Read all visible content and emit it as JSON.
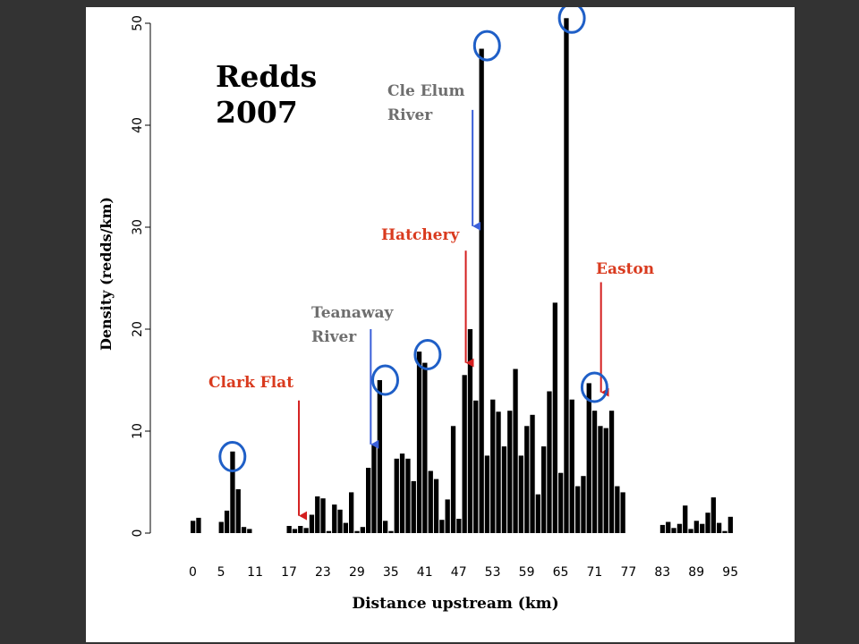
{
  "chart_data": {
    "type": "bar",
    "title": "Redds 2007",
    "title_lines": [
      "Redds",
      "2007"
    ],
    "xlabel": "Distance upstream (km)",
    "ylabel": "Density (redds/km)",
    "xlim": [
      0,
      96
    ],
    "ylim": [
      0,
      50
    ],
    "grid": false,
    "x_ticks": [
      0,
      5,
      11,
      17,
      23,
      29,
      35,
      41,
      47,
      53,
      59,
      65,
      71,
      77,
      83,
      89,
      95
    ],
    "y_ticks": [
      0,
      10,
      20,
      30,
      40,
      50
    ],
    "bar_color": "#000000",
    "x": [
      0,
      1,
      5,
      6,
      7,
      8,
      9,
      10,
      17,
      18,
      19,
      20,
      21,
      22,
      23,
      24,
      25,
      26,
      27,
      28,
      29,
      30,
      31,
      32,
      33,
      34,
      35,
      36,
      37,
      38,
      39,
      40,
      41,
      42,
      43,
      44,
      45,
      46,
      47,
      48,
      49,
      50,
      51,
      52,
      53,
      54,
      55,
      56,
      57,
      58,
      59,
      60,
      61,
      62,
      63,
      64,
      65,
      66,
      67,
      68,
      69,
      70,
      71,
      72,
      73,
      74,
      75,
      76,
      83,
      84,
      85,
      86,
      87,
      88,
      89,
      90,
      91,
      92,
      93,
      94,
      95
    ],
    "values": [
      1.2,
      1.5,
      1.1,
      2.2,
      8.0,
      4.3,
      0.6,
      0.4,
      0.7,
      0.4,
      0.7,
      0.5,
      1.8,
      3.6,
      3.4,
      0.2,
      2.8,
      2.3,
      1.0,
      4.0,
      0.2,
      0.6,
      6.4,
      8.7,
      15.0,
      1.2,
      0.2,
      7.3,
      7.8,
      7.3,
      5.1,
      17.8,
      16.7,
      6.1,
      5.3,
      1.3,
      3.3,
      10.5,
      1.4,
      15.5,
      20.0,
      13.0,
      47.5,
      7.6,
      13.1,
      11.9,
      8.5,
      12.0,
      16.1,
      7.6,
      10.5,
      11.6,
      3.8,
      8.5,
      13.9,
      22.6,
      5.9,
      50.5,
      13.1,
      4.6,
      5.6,
      14.7,
      12.0,
      10.5,
      10.3,
      12.0,
      4.6,
      4.0,
      0.8,
      1.1,
      0.5,
      0.9,
      2.7,
      0.4,
      1.2,
      0.9,
      2.0,
      3.5,
      1.0,
      0.2,
      1.6
    ],
    "annotations": [
      {
        "text": "Clark Flat",
        "lines": [
          "Clark Flat"
        ],
        "color": "#D93A1E",
        "arrow_color": "#D41F1F",
        "arrow_x": 19.3,
        "arrow_y_top": 13.0,
        "arrow_y_bottom": 1.7
      },
      {
        "text": "Teanaway River",
        "lines": [
          "Teanaway",
          "River"
        ],
        "color": "#6E6E6E",
        "arrow_color": "#3A5FD9",
        "arrow_x": 32.0,
        "arrow_y_top": 20.0,
        "arrow_y_bottom": 8.7
      },
      {
        "text": "Hatchery",
        "lines": [
          "Hatchery"
        ],
        "color": "#D93A1E",
        "arrow_color": "#D41F1F",
        "arrow_x": 48.8,
        "arrow_y_top": 27.7,
        "arrow_y_bottom": 16.7
      },
      {
        "text": "Cle Elum River",
        "lines": [
          "Cle Elum",
          "River"
        ],
        "color": "#6E6E6E",
        "arrow_color": "#3A5FD9",
        "arrow_x": 50.0,
        "arrow_y_top": 41.5,
        "arrow_y_bottom": 30.1
      },
      {
        "text": "Easton",
        "lines": [
          "Easton"
        ],
        "color": "#D93A1E",
        "arrow_color": "#D41F1F",
        "arrow_x": 72.7,
        "arrow_y_top": 24.6,
        "arrow_y_bottom": 13.8
      }
    ],
    "highlight_circles": [
      {
        "x": 7.0,
        "y": 7.5
      },
      {
        "x": 34.0,
        "y": 15.0
      },
      {
        "x": 41.5,
        "y": 17.5
      },
      {
        "x": 52.0,
        "y": 47.8
      },
      {
        "x": 67.0,
        "y": 50.5
      },
      {
        "x": 71.0,
        "y": 14.3
      }
    ],
    "highlight_color": "#1F5FC7"
  }
}
